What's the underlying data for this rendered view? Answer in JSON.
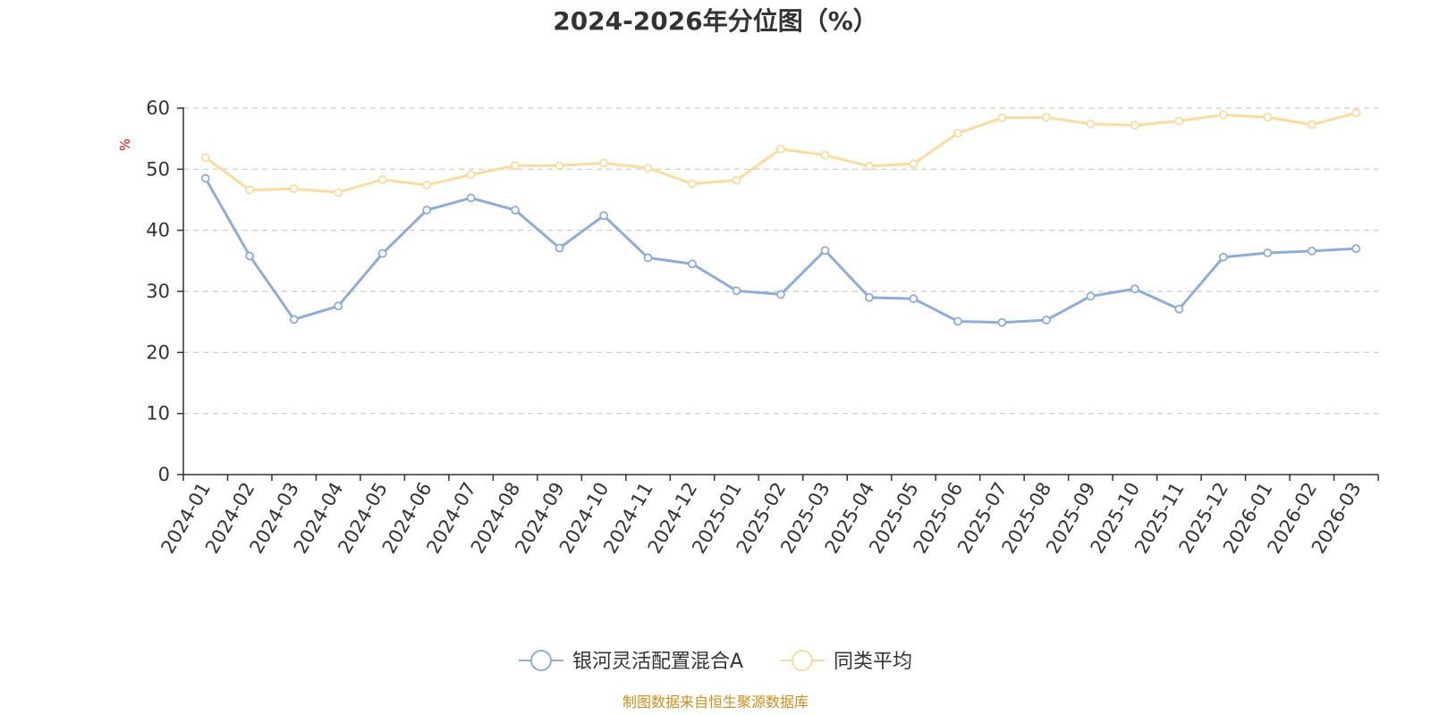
{
  "chart_data": {
    "type": "line",
    "title": "2024-2026年分位图（%）",
    "ylabel": "%",
    "xlabel": "",
    "ylim": [
      0,
      60
    ],
    "y_ticks": [
      0,
      10,
      20,
      30,
      40,
      50,
      60
    ],
    "grid": true,
    "legend_position": "bottom-center",
    "categories": [
      "2024-01",
      "2024-02",
      "2024-03",
      "2024-04",
      "2024-05",
      "2024-06",
      "2024-07",
      "2024-08",
      "2024-09",
      "2024-10",
      "2024-11",
      "2024-12",
      "2025-01",
      "2025-02",
      "2025-03",
      "2025-04",
      "2025-05",
      "2025-06",
      "2025-07",
      "2025-08",
      "2025-09",
      "2025-10",
      "2025-11",
      "2025-12",
      "2026-01",
      "2026-02",
      "2026-03"
    ],
    "series": [
      {
        "name": "银河灵活配置混合A",
        "color": "#8eadda",
        "values": [
          48.5,
          35.8,
          25.4,
          27.6,
          36.2,
          43.3,
          45.3,
          43.3,
          37.1,
          42.4,
          35.5,
          34.5,
          30.1,
          29.5,
          36.7,
          29.0,
          28.8,
          25.1,
          24.9,
          25.3,
          29.2,
          30.4,
          27.1,
          35.6,
          36.3,
          36.6,
          37.0
        ]
      },
      {
        "name": "同类平均",
        "color": "#fadc9c",
        "values": [
          51.9,
          46.6,
          46.8,
          46.2,
          48.3,
          47.4,
          49.1,
          50.6,
          50.6,
          51.0,
          50.2,
          47.6,
          48.2,
          53.3,
          52.3,
          50.5,
          50.9,
          55.9,
          58.4,
          58.5,
          57.4,
          57.2,
          57.9,
          58.9,
          58.5,
          57.3,
          59.2
        ]
      }
    ]
  },
  "source_text": "制图数据来自恒生聚源数据库",
  "colors": {
    "axis": "#333333",
    "grid": "#cccccc",
    "unit_label": "#ff0000",
    "source": "#c8901a"
  }
}
